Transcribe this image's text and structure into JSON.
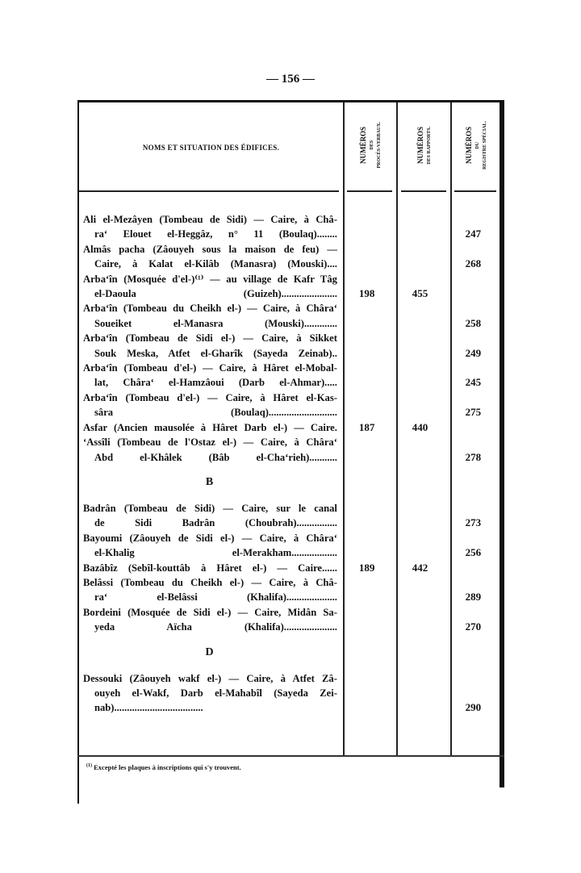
{
  "page_number": "— 156 —",
  "header": {
    "title": "NOMS ET SITUATION DES ÉDIFICES.",
    "col1": [
      "NUMÉROS",
      "DES",
      "PROCÈS-VERBAUX."
    ],
    "col2": [
      "NUMÉROS",
      "DES RAPPORTS."
    ],
    "col3": [
      "NUMÉROS",
      "DU",
      "REGISTRE SPÉCIAL."
    ]
  },
  "sections": [
    {
      "letter": "",
      "entries": [
        {
          "lines": [
            "Ali el-Mezâyen (Tombeau de Sidi) — Caire, à Châ-",
            "ra‘ Elouet el-Heggâz, n° 11 (Boulaq)........"
          ],
          "pv": "",
          "rapport": "",
          "registre": "247"
        },
        {
          "lines": [
            "Almâs pacha (Zâouyeh sous la maison de feu) —",
            "Caire, à Kalat el-Kilâb (Manasra) (Mouski)...."
          ],
          "pv": "",
          "rapport": "",
          "registre": "268"
        },
        {
          "lines": [
            "Arba‘în (Mosquée d'el-)⁽¹⁾ — au village de Kafr Tâg",
            "el-Daoula (Guizeh)......................"
          ],
          "pv": "198",
          "rapport": "455",
          "registre": ""
        },
        {
          "lines": [
            "Arba‘în (Tombeau du Cheikh el-) — Caire, à Châra‘",
            "Soueiket el-Manasra (Mouski)............."
          ],
          "pv": "",
          "rapport": "",
          "registre": "258"
        },
        {
          "lines": [
            "Arba‘în (Tombeau de Sidi el-) — Caire, à Sikket",
            "Souk Meska, Atfet el-Gharîk (Sayeda Zeinab).."
          ],
          "pv": "",
          "rapport": "",
          "registre": "249"
        },
        {
          "lines": [
            "Arba‘în (Tombeau d'el-) — Caire, à Hâret el-Mobal-",
            "lat, Châra‘ el-Hamzâoui (Darb el-Ahmar)....."
          ],
          "pv": "",
          "rapport": "",
          "registre": "245"
        },
        {
          "lines": [
            "Arba‘în (Tombeau d'el-) — Caire, à Hâret el-Kas-",
            "sâra (Boulaq)..........................."
          ],
          "pv": "",
          "rapport": "",
          "registre": "275"
        },
        {
          "lines": [
            "Asfar (Ancien mausolée à Hâret Darb el-) — Caire."
          ],
          "pv": "187",
          "rapport": "440",
          "registre": ""
        },
        {
          "lines": [
            "‘Assîli (Tombeau de l'Ostaz el-) — Caire, à Châra‘",
            "Abd el-Khâlek (Bâb el-Cha‘rieh)..........."
          ],
          "pv": "",
          "rapport": "",
          "registre": "278"
        }
      ]
    },
    {
      "letter": "B",
      "entries": [
        {
          "lines": [
            "Badrân (Tombeau de Sidi) — Caire, sur le canal",
            "de Sidi Badrân (Choubrah)................"
          ],
          "pv": "",
          "rapport": "",
          "registre": "273"
        },
        {
          "lines": [
            "Bayoumi (Zâouyeh de Sidi el-) — Caire, à Châra‘",
            "el-Khalig el-Merakham.................."
          ],
          "pv": "",
          "rapport": "",
          "registre": "256"
        },
        {
          "lines": [
            "Bazâbîz (Sebîl-kouttâb à Hâret el-) — Caire......"
          ],
          "pv": "189",
          "rapport": "442",
          "registre": ""
        },
        {
          "lines": [
            "Belâssi (Tombeau du Cheikh el-) — Caire, à Châ-",
            "ra‘ el-Belâssi (Khalifa)...................."
          ],
          "pv": "",
          "rapport": "",
          "registre": "289"
        },
        {
          "lines": [
            "Bordeini (Mosquée de Sidi el-) — Caire, Midân Sa-",
            "yeda Aïcha (Khalifa)....................."
          ],
          "pv": "",
          "rapport": "",
          "registre": "270"
        }
      ]
    },
    {
      "letter": "D",
      "entries": [
        {
          "lines": [
            "Dessouki (Zâouyeh wakf el-) — Caire, à Atfet Zâ-",
            "ouyeh el-Wakf, Darb el-Mahabîl (Sayeda Zei-",
            "nab)..................................."
          ],
          "pv": "",
          "rapport": "",
          "registre": "290"
        }
      ]
    }
  ],
  "footnote": {
    "marker": "(1)",
    "text": "Excepté les plaques à inscriptions qui s'y trouvent."
  }
}
